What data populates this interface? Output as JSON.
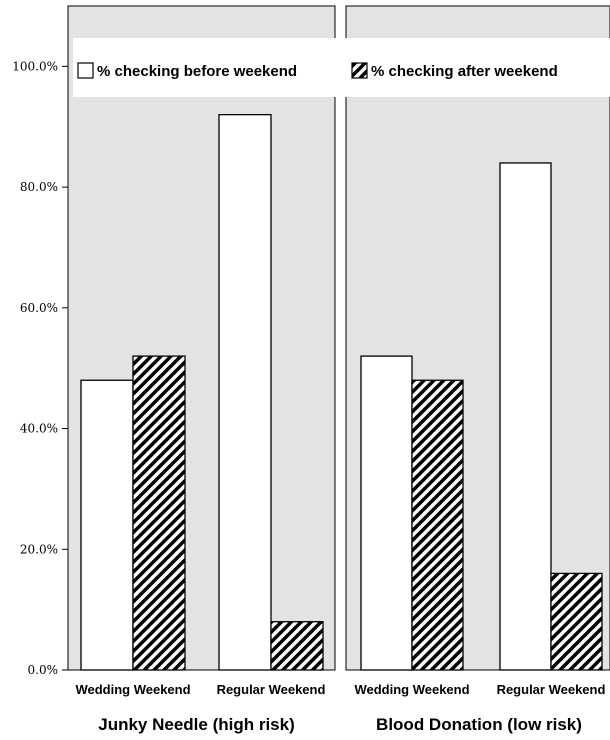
{
  "chart_data": {
    "type": "bar",
    "ylim": [
      0,
      110
    ],
    "yticks": [
      {
        "value": 0,
        "label": "0.0%"
      },
      {
        "value": 20,
        "label": "20.0%"
      },
      {
        "value": 40,
        "label": "40.0%"
      },
      {
        "value": 60,
        "label": "60.0%"
      },
      {
        "value": 80,
        "label": "80.0%"
      },
      {
        "value": 100,
        "label": "100.0%"
      }
    ],
    "grid": false,
    "legend_position": "top",
    "legend": [
      {
        "label": "% checking before weekend",
        "pattern": "solid-white"
      },
      {
        "label": "% checking after weekend",
        "pattern": "diagonal-hatch"
      }
    ],
    "panels": [
      {
        "title": "Junky Needle (high risk)",
        "categories": [
          "Wedding Weekend",
          "Regular Weekend"
        ],
        "series": [
          {
            "name": "% checking before weekend",
            "values": [
              48,
              92
            ]
          },
          {
            "name": "% checking after weekend",
            "values": [
              52,
              8
            ]
          }
        ]
      },
      {
        "title": "Blood Donation (low risk)",
        "categories": [
          "Wedding Weekend",
          "Regular Weekend"
        ],
        "series": [
          {
            "name": "% checking before weekend",
            "values": [
              52,
              84
            ]
          },
          {
            "name": "% checking after weekend",
            "values": [
              48,
              16
            ]
          }
        ]
      }
    ],
    "colors": {
      "panel_background": "#e3e3e3",
      "bar_fill": "#ffffff",
      "bar_stroke": "#000000",
      "hatch": "#000000"
    }
  }
}
